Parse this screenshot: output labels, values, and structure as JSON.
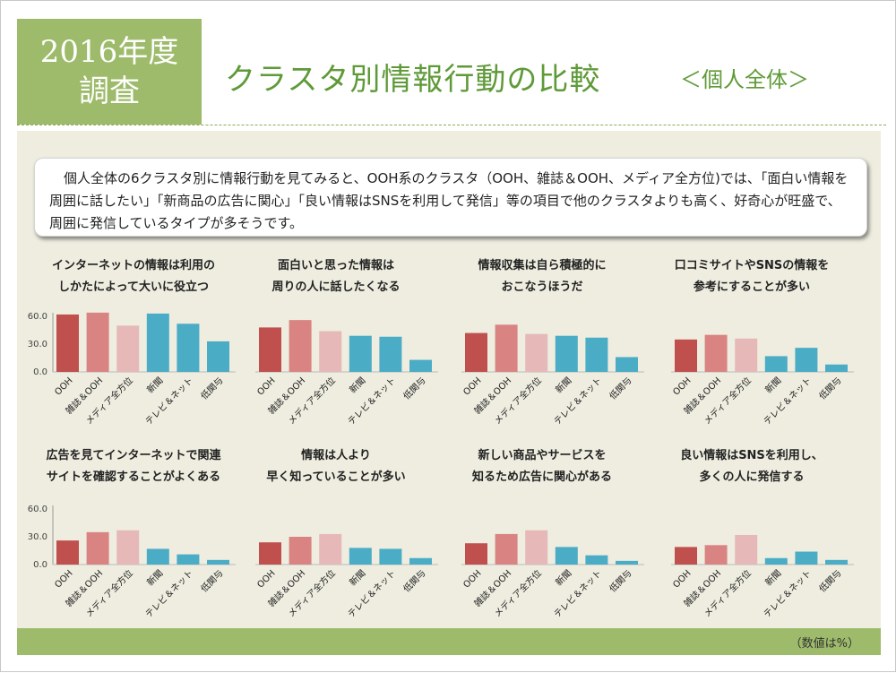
{
  "header": {
    "year_line1": "2016年度",
    "year_line2": "調査",
    "title": "クラスタ別情報行動の比較",
    "subtitle": "＜個人全体＞"
  },
  "summary": "個人全体の6クラスタ別に情報行動を見てみると、OOH系のクラスタ（OOH、雑誌＆OOH、メディア全方位)では、「面白い情報を周囲に話したい」「新商品の広告に関心」「良い情報はSNSを利用して発信」等の項目で他のクラスタよりも高く、好奇心が旺盛で、周囲に発信しているタイプが多そうです。",
  "note": "（数値は%）",
  "colors": {
    "OOH": "#c0504d",
    "雑誌＆OOH": "#d98482",
    "メディア全方位": "#e6b9b8",
    "新聞": "#4bacc6",
    "テレビ＆ネット": "#4bacc6",
    "低関与": "#4bacc6"
  },
  "chart_data": [
    {
      "type": "bar",
      "title": "インターネットの情報は利用の\nしかたによって大いに役立つ",
      "categories": [
        "OOH",
        "雑誌＆OOH",
        "メディア全方位",
        "新聞",
        "テレビ＆ネット",
        "低関与"
      ],
      "values": [
        62,
        64,
        50,
        63,
        52,
        33
      ],
      "ylim": [
        0,
        60
      ],
      "yticks": [
        "60.0",
        "30.0",
        "0.0"
      ]
    },
    {
      "type": "bar",
      "title": "面白いと思った情報は\n周りの人に話したくなる",
      "categories": [
        "OOH",
        "雑誌＆OOH",
        "メディア全方位",
        "新聞",
        "テレビ＆ネット",
        "低関与"
      ],
      "values": [
        48,
        56,
        44,
        39,
        38,
        13
      ],
      "ylim": [
        0,
        60
      ]
    },
    {
      "type": "bar",
      "title": "情報収集は自ら積極的に\nおこなうほうだ",
      "categories": [
        "OOH",
        "雑誌＆OOH",
        "メディア全方位",
        "新聞",
        "テレビ＆ネット",
        "低関与"
      ],
      "values": [
        42,
        51,
        41,
        39,
        37,
        16
      ],
      "ylim": [
        0,
        60
      ]
    },
    {
      "type": "bar",
      "title": "口コミサイトやSNSの情報を\n参考にすることが多い",
      "categories": [
        "OOH",
        "雑誌＆OOH",
        "メディア全方位",
        "新聞",
        "テレビ＆ネット",
        "低関与"
      ],
      "values": [
        35,
        40,
        36,
        17,
        26,
        8
      ],
      "ylim": [
        0,
        60
      ]
    },
    {
      "type": "bar",
      "title": "広告を見てインターネットで関連\nサイトを確認することがよくある",
      "categories": [
        "OOH",
        "雑誌＆OOH",
        "メディア全方位",
        "新聞",
        "テレビ＆ネット",
        "低関与"
      ],
      "values": [
        26,
        35,
        37,
        17,
        11,
        5
      ],
      "ylim": [
        0,
        60
      ],
      "yticks": [
        "60.0",
        "30.0",
        "0.0"
      ]
    },
    {
      "type": "bar",
      "title": "情報は人より\n早く知っていることが多い",
      "categories": [
        "OOH",
        "雑誌＆OOH",
        "メディア全方位",
        "新聞",
        "テレビ＆ネット",
        "低関与"
      ],
      "values": [
        24,
        30,
        33,
        18,
        17,
        7
      ],
      "ylim": [
        0,
        60
      ]
    },
    {
      "type": "bar",
      "title": "新しい商品やサービスを\n知るため広告に関心がある",
      "categories": [
        "OOH",
        "雑誌＆OOH",
        "メディア全方位",
        "新聞",
        "テレビ＆ネット",
        "低関与"
      ],
      "values": [
        23,
        33,
        37,
        19,
        10,
        4
      ],
      "ylim": [
        0,
        60
      ]
    },
    {
      "type": "bar",
      "title": "良い情報はSNSを利用し、\n多くの人に発信する",
      "categories": [
        "OOH",
        "雑誌＆OOH",
        "メディア全方位",
        "新聞",
        "テレビ＆ネット",
        "低関与"
      ],
      "values": [
        19,
        21,
        32,
        7,
        14,
        5
      ],
      "ylim": [
        0,
        60
      ]
    }
  ]
}
